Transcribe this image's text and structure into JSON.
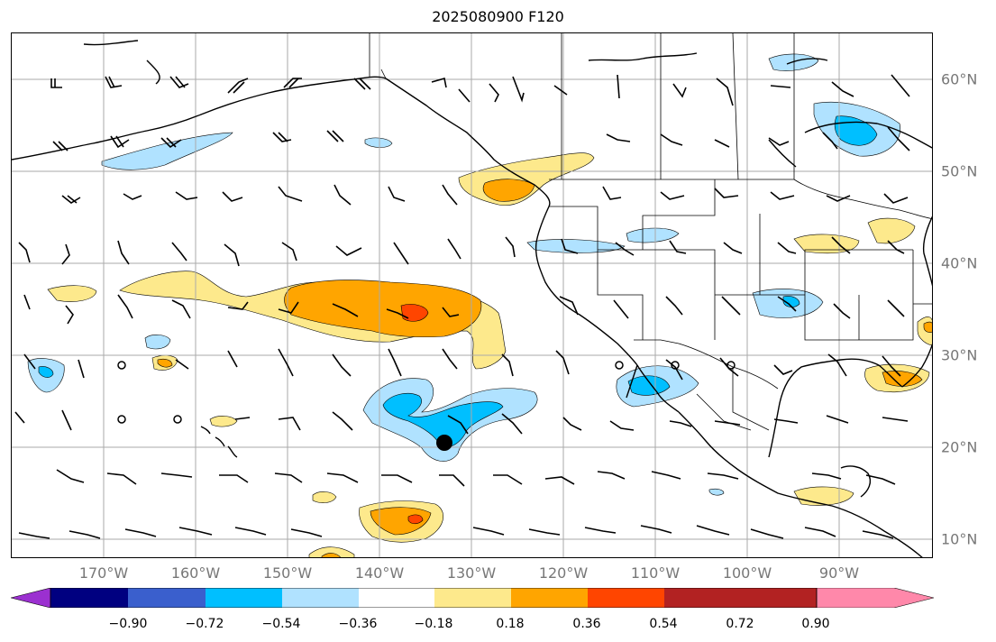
{
  "title": "2025080900 F120",
  "lon_labels": [
    "170°W",
    "160°W",
    "150°W",
    "140°W",
    "130°W",
    "120°W",
    "110°W",
    "100°W",
    "90°W"
  ],
  "lat_labels": [
    "60°N",
    "50°N",
    "40°N",
    "30°N",
    "20°N",
    "10°N"
  ],
  "colorbar": {
    "colors": [
      "#9b30d0",
      "#000080",
      "#3a5fcd",
      "#00bfff",
      "#b0e2ff",
      "#ffffff",
      "#fde98c",
      "#ffa500",
      "#ff4500",
      "#b22222",
      "#ff88aa"
    ],
    "ticks": [
      "−0.90",
      "−0.72",
      "−0.54",
      "−0.36",
      "−0.18",
      "0.18",
      "0.36",
      "0.54",
      "0.72",
      "0.90"
    ]
  },
  "legend_colors": {
    "light_blue": "#b0e2ff",
    "mid_blue": "#00bfff",
    "light_yellow": "#fde98c",
    "orange": "#ffa500",
    "red_orange": "#ff4500",
    "gridline": "#aaaaaa",
    "coast": "#000000"
  }
}
